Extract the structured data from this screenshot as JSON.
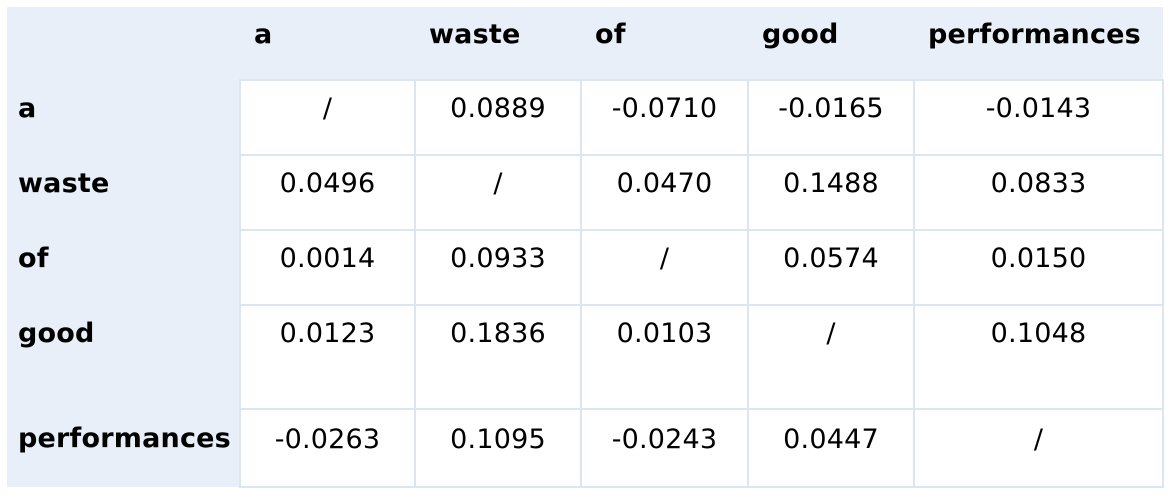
{
  "table": {
    "columns": [
      "a",
      "waste",
      "of",
      "good",
      "performances"
    ],
    "rows": [
      {
        "label": "a",
        "values": [
          "/",
          "0.0889",
          "-0.0710",
          "-0.0165",
          "-0.0143"
        ]
      },
      {
        "label": "waste",
        "values": [
          "0.0496",
          "/",
          "0.0470",
          "0.1488",
          "0.0833"
        ]
      },
      {
        "label": "of",
        "values": [
          "0.0014",
          "0.0933",
          "/",
          "0.0574",
          "0.0150"
        ]
      },
      {
        "label": "good",
        "values": [
          "0.0123",
          "0.1836",
          "0.0103",
          "/",
          "0.1048"
        ]
      },
      {
        "label": "performances",
        "values": [
          "-0.0263",
          "0.1095",
          "-0.0243",
          "0.0447",
          "/"
        ]
      }
    ]
  },
  "colors": {
    "header_background": "#e8eff8",
    "cell_background": "#ffffff",
    "grid_line": "#dce6f2"
  }
}
